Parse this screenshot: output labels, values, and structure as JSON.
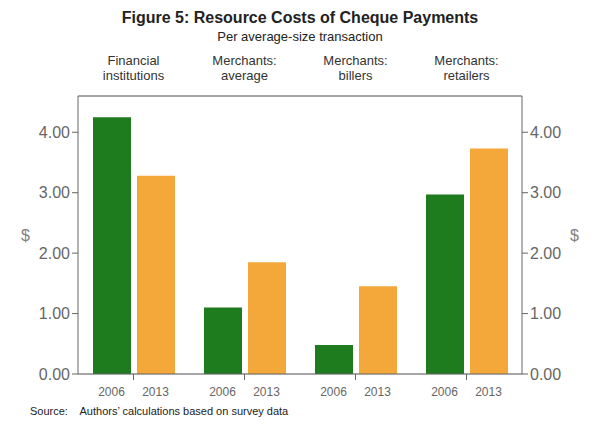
{
  "chart_data": {
    "type": "bar",
    "title": "Figure 5: Resource Costs of Cheque Payments",
    "subtitle": "Per average-size transaction",
    "annotations": [
      "Source:    Authors’ calculations based on survey data"
    ],
    "categories": [
      "Financial\ninstitutions",
      "Merchants:\naverage",
      "Merchants:\nbillers",
      "Merchants:\nretailers"
    ],
    "series": [
      {
        "name": "2006",
        "color": "#1e7b1e",
        "values": [
          4.25,
          1.1,
          0.48,
          2.97
        ]
      },
      {
        "name": "2013",
        "color": "#f5a83a",
        "values": [
          3.28,
          1.85,
          1.45,
          3.73
        ]
      }
    ],
    "ylabel": "$",
    "y2label": "$",
    "ylim": [
      0,
      4.6
    ],
    "yticks": [
      {
        "value": 0.0,
        "label": "0.00"
      },
      {
        "value": 1.0,
        "label": "1.00"
      },
      {
        "value": 2.0,
        "label": "2.00"
      },
      {
        "value": 3.0,
        "label": "3.00"
      },
      {
        "value": 4.0,
        "label": "4.00"
      }
    ],
    "y2lim": [
      0,
      4.6
    ],
    "y2ticks": [
      {
        "value": 0.0,
        "label": "0.00"
      },
      {
        "value": 1.0,
        "label": "1.00"
      },
      {
        "value": 2.0,
        "label": "2.00"
      },
      {
        "value": 3.0,
        "label": "3.00"
      },
      {
        "value": 4.0,
        "label": "4.00"
      }
    ],
    "grid": true
  }
}
